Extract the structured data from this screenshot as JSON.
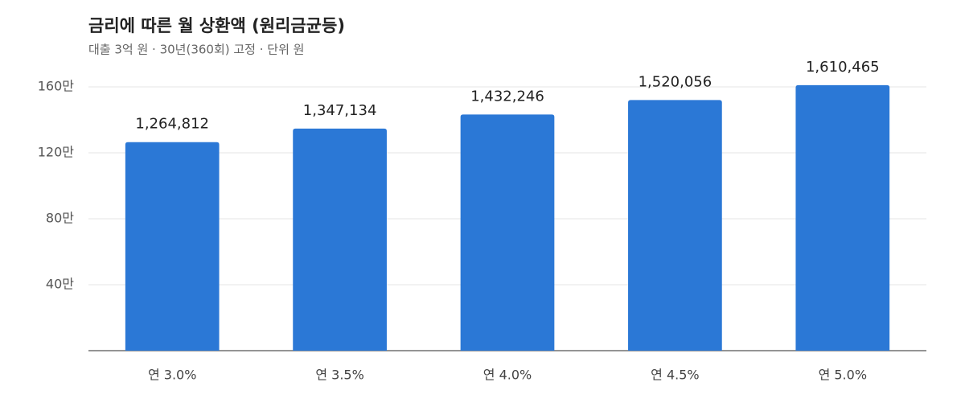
{
  "chart_data": {
    "type": "bar",
    "title": "금리에 따른 월 상환액 (원리금균등)",
    "subtitle": "대출 3억 원 · 30년(360회) 고정 · 단위 원",
    "categories": [
      "연 3.0%",
      "연 3.5%",
      "연 4.0%",
      "연 4.5%",
      "연 5.0%"
    ],
    "values": [
      1264812,
      1347134,
      1432246,
      1520056,
      1610465
    ],
    "value_labels": [
      "1,264,812",
      "1,347,134",
      "1,432,246",
      "1,520,056",
      "1,610,465"
    ],
    "color": "#2b78d6",
    "ylim": [
      0,
      1600000
    ],
    "yticks": [
      {
        "value": 400000,
        "label": "40만"
      },
      {
        "value": 800000,
        "label": "80만"
      },
      {
        "value": 1200000,
        "label": "120만"
      },
      {
        "value": 1600000,
        "label": "160만"
      }
    ],
    "grid": true
  }
}
